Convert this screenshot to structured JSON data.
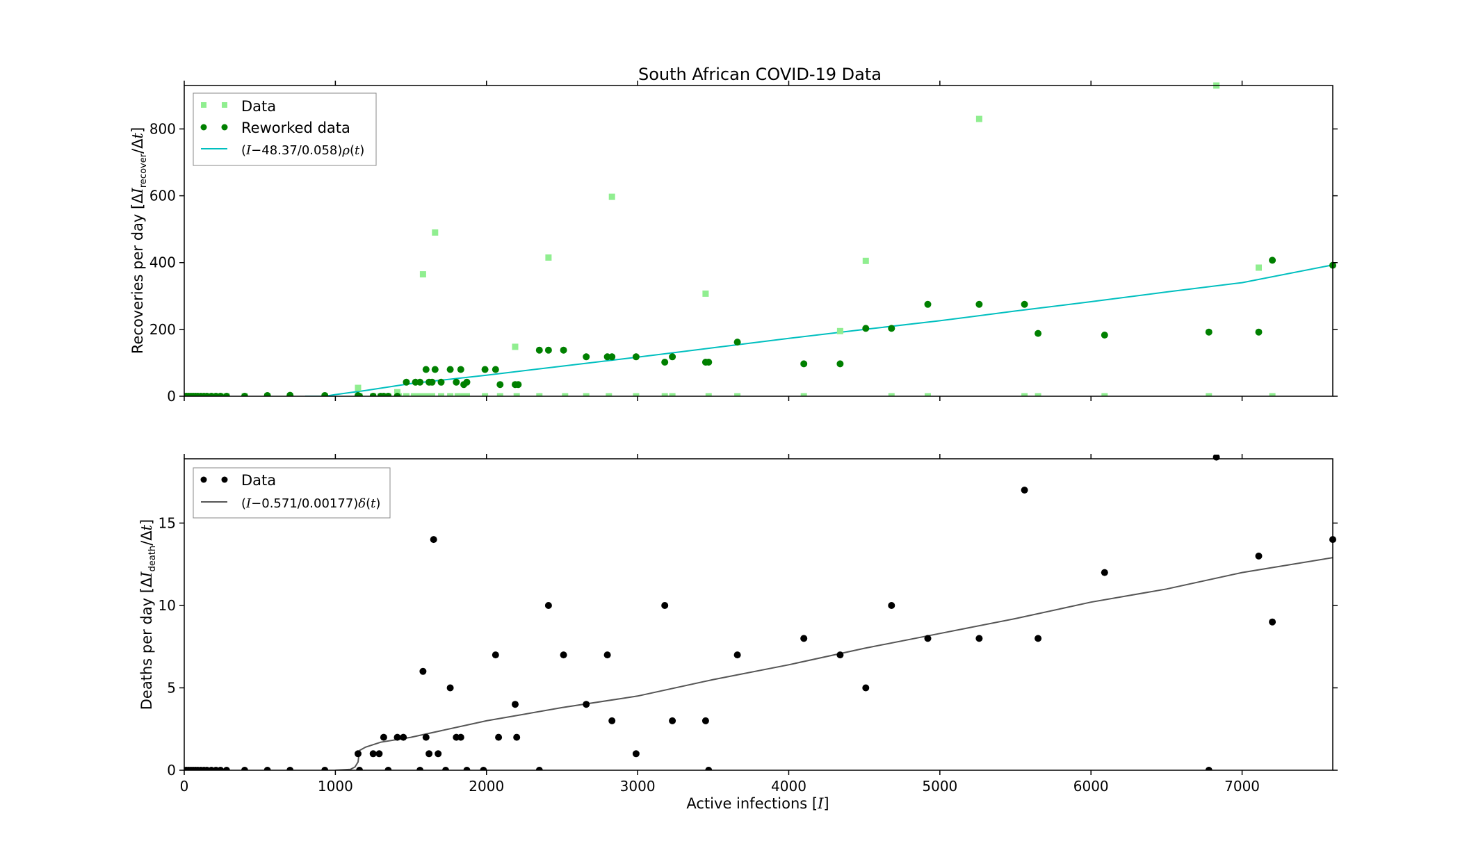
{
  "chart_data": [
    {
      "type": "scatter",
      "title": "South African COVID-19 Data",
      "xlabel": "",
      "ylabel": "Recoveries per day [ΔI_recover/Δt]",
      "xlim": [
        0,
        7600
      ],
      "ylim": [
        0,
        930
      ],
      "x_ticks": [
        0,
        1000,
        2000,
        3000,
        4000,
        5000,
        6000,
        7000
      ],
      "x_tick_labels_shown": false,
      "y_ticks": [
        0,
        200,
        400,
        600,
        800
      ],
      "legend_position": "top-left",
      "colors": {
        "data": "#90ee90",
        "reworked": "#008000",
        "fit": "#00bfbf"
      },
      "series": [
        {
          "name": "Data",
          "kind": "points",
          "marker": "square",
          "x": [
            0,
            15,
            30,
            45,
            60,
            75,
            90,
            110,
            130,
            150,
            180,
            210,
            240,
            280,
            400,
            550,
            700,
            930,
            1150,
            1150,
            1160,
            1250,
            1300,
            1320,
            1350,
            1410,
            1420,
            1470,
            1520,
            1560,
            1580,
            1600,
            1620,
            1640,
            1660,
            1700,
            1760,
            1810,
            1850,
            1870,
            1990,
            2090,
            2190,
            2200,
            2350,
            2410,
            2520,
            2660,
            2810,
            2830,
            2990,
            3180,
            3230,
            3450,
            3470,
            3660,
            4100,
            4340,
            4510,
            4680,
            4920,
            5260,
            5560,
            5650,
            6090,
            6780,
            6830,
            7110,
            7200
          ],
          "y": [
            0,
            0,
            0,
            0,
            0,
            0,
            0,
            0,
            0,
            0,
            0,
            0,
            0,
            0,
            0,
            0,
            0,
            0,
            25,
            0,
            0,
            0,
            0,
            0,
            0,
            12,
            0,
            0,
            0,
            0,
            365,
            0,
            0,
            0,
            490,
            0,
            0,
            0,
            0,
            0,
            0,
            0,
            148,
            0,
            0,
            415,
            0,
            0,
            0,
            597,
            0,
            0,
            0,
            307,
            0,
            0,
            0,
            195,
            405,
            0,
            0,
            830,
            0,
            0,
            0,
            0,
            930,
            385,
            0
          ]
        },
        {
          "name": "Reworked data",
          "kind": "points",
          "marker": "circle",
          "x": [
            0,
            15,
            30,
            45,
            60,
            75,
            90,
            110,
            130,
            150,
            180,
            210,
            240,
            280,
            400,
            550,
            700,
            930,
            1150,
            1160,
            1250,
            1300,
            1320,
            1350,
            1410,
            1470,
            1530,
            1560,
            1600,
            1620,
            1640,
            1660,
            1700,
            1760,
            1800,
            1830,
            1850,
            1870,
            1990,
            2060,
            2090,
            2190,
            2210,
            2350,
            2410,
            2510,
            2660,
            2800,
            2830,
            2990,
            3180,
            3230,
            3450,
            3470,
            3660,
            4100,
            4340,
            4510,
            4680,
            4920,
            5260,
            5560,
            5650,
            6090,
            6780,
            7110,
            7200,
            7600
          ],
          "y": [
            0,
            0,
            0,
            0,
            0,
            0,
            0,
            0,
            0,
            0,
            0,
            0,
            0,
            0,
            0,
            2,
            3,
            2,
            2,
            0,
            0,
            0,
            0,
            0,
            0,
            42,
            42,
            42,
            80,
            42,
            42,
            80,
            42,
            80,
            42,
            80,
            35,
            42,
            80,
            80,
            35,
            35,
            35,
            138,
            138,
            138,
            118,
            118,
            118,
            118,
            102,
            118,
            102,
            102,
            162,
            97,
            97,
            203,
            203,
            275,
            275,
            275,
            188,
            183,
            192,
            192,
            407,
            392
          ]
        },
        {
          "name": "(I−48.37/0.058)ρ(t)",
          "kind": "line",
          "x": [
            800,
            880,
            930,
            1000,
            1200,
            1500,
            2000,
            2500,
            3000,
            3500,
            4000,
            4500,
            5000,
            5500,
            6000,
            6500,
            7000,
            7600
          ],
          "y": [
            0,
            0,
            0,
            5,
            17,
            38,
            63,
            90,
            117,
            145,
            173,
            200,
            226,
            255,
            283,
            312,
            340,
            393
          ]
        }
      ]
    },
    {
      "type": "scatter",
      "title": "",
      "xlabel": "Active infections [I]",
      "ylabel": "Deaths per day [ΔI_death/Δt]",
      "xlim": [
        0,
        7600
      ],
      "ylim": [
        0,
        18.9
      ],
      "x_ticks": [
        0,
        1000,
        2000,
        3000,
        4000,
        5000,
        6000,
        7000
      ],
      "x_tick_labels_shown": true,
      "y_ticks": [
        0,
        5,
        10,
        15
      ],
      "legend_position": "top-left",
      "colors": {
        "data": "#000000",
        "fit": "#555555"
      },
      "series": [
        {
          "name": "Data",
          "kind": "points",
          "marker": "circle",
          "x": [
            0,
            15,
            30,
            45,
            60,
            75,
            90,
            110,
            130,
            150,
            180,
            210,
            240,
            280,
            400,
            550,
            700,
            930,
            1150,
            1160,
            1250,
            1290,
            1320,
            1350,
            1410,
            1450,
            1560,
            1580,
            1600,
            1620,
            1650,
            1680,
            1730,
            1760,
            1800,
            1830,
            1870,
            1980,
            2060,
            2080,
            2190,
            2200,
            2350,
            2410,
            2510,
            2660,
            2800,
            2830,
            2990,
            3180,
            3230,
            3450,
            3470,
            3660,
            4100,
            4340,
            4510,
            4680,
            4920,
            5260,
            5560,
            5650,
            6090,
            6780,
            6830,
            7110,
            7200,
            7600
          ],
          "y": [
            0,
            0,
            0,
            0,
            0,
            0,
            0,
            0,
            0,
            0,
            0,
            0,
            0,
            0,
            0,
            0,
            0,
            0,
            1,
            0,
            1,
            1,
            2,
            0,
            2,
            2,
            0,
            6,
            2,
            1,
            14,
            1,
            0,
            5,
            2,
            2,
            0,
            0,
            7,
            2,
            4,
            2,
            0,
            10,
            7,
            4,
            7,
            3,
            1,
            10,
            3,
            3,
            0,
            7,
            8,
            7,
            5,
            10,
            8,
            8,
            17,
            8,
            12,
            0,
            19,
            13,
            9,
            14
          ]
        },
        {
          "name": "(I−0.571/0.00177)δ(t)",
          "kind": "line",
          "x": [
            1000,
            1100,
            1130,
            1150,
            1160,
            1200,
            1300,
            1500,
            2000,
            2500,
            3000,
            3500,
            4000,
            4500,
            5000,
            5500,
            6000,
            6500,
            7000,
            7600
          ],
          "y": [
            0,
            0.05,
            0.2,
            0.5,
            1.2,
            1.4,
            1.7,
            2.0,
            3.0,
            3.8,
            4.5,
            5.5,
            6.4,
            7.4,
            8.3,
            9.2,
            10.2,
            11.0,
            12.0,
            12.9
          ]
        }
      ]
    }
  ]
}
